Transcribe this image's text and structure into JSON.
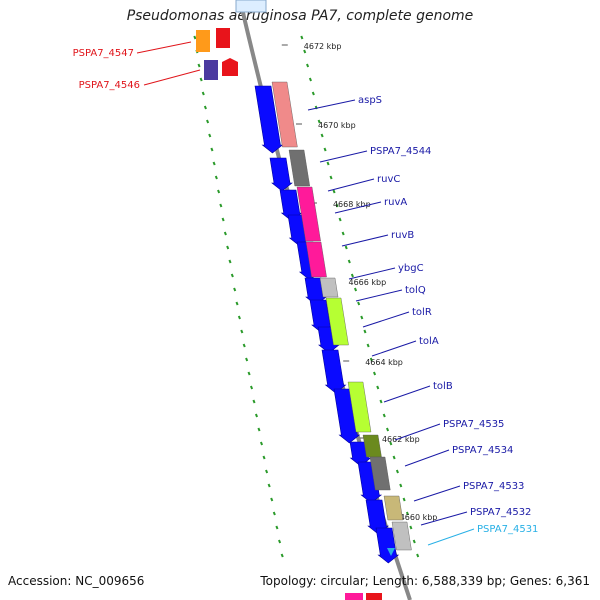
{
  "title": "Pseudomonas aeruginosa PA7, complete genome",
  "accession": "Accession: NC_009656",
  "summary": "Topology: circular; Length: 6,588,339 bp; Genes: 6,361",
  "colors": {
    "forward_cds": "#0a0aff",
    "label_default": "#1a1aa6",
    "label_highlight": "#e0151b",
    "label_selected": "#28b0e6",
    "backbone": "#888888",
    "gc_dots": "#2a9a2a"
  },
  "kbp_ticks": [
    "4672 kbp",
    "4670 kbp",
    "4668 kbp",
    "4666 kbp",
    "4664 kbp",
    "4662 kbp",
    "4660 kbp"
  ],
  "genes": [
    {
      "label": "PSPA7_4547",
      "color_key": "label_highlight"
    },
    {
      "label": "PSPA7_4546",
      "color_key": "label_highlight"
    },
    {
      "label": "aspS",
      "color_key": "label_default"
    },
    {
      "label": "PSPA7_4544",
      "color_key": "label_default"
    },
    {
      "label": "ruvC",
      "color_key": "label_default"
    },
    {
      "label": "ruvA",
      "color_key": "label_default"
    },
    {
      "label": "ruvB",
      "color_key": "label_default"
    },
    {
      "label": "ybgC",
      "color_key": "label_default"
    },
    {
      "label": "tolQ",
      "color_key": "label_default"
    },
    {
      "label": "tolR",
      "color_key": "label_default"
    },
    {
      "label": "tolA",
      "color_key": "label_default"
    },
    {
      "label": "tolB",
      "color_key": "label_default"
    },
    {
      "label": "PSPA7_4535",
      "color_key": "label_default"
    },
    {
      "label": "PSPA7_4534",
      "color_key": "label_default"
    },
    {
      "label": "PSPA7_4533",
      "color_key": "label_default"
    },
    {
      "label": "PSPA7_4532",
      "color_key": "label_default"
    },
    {
      "label": "PSPA7_4531",
      "color_key": "label_selected"
    }
  ]
}
